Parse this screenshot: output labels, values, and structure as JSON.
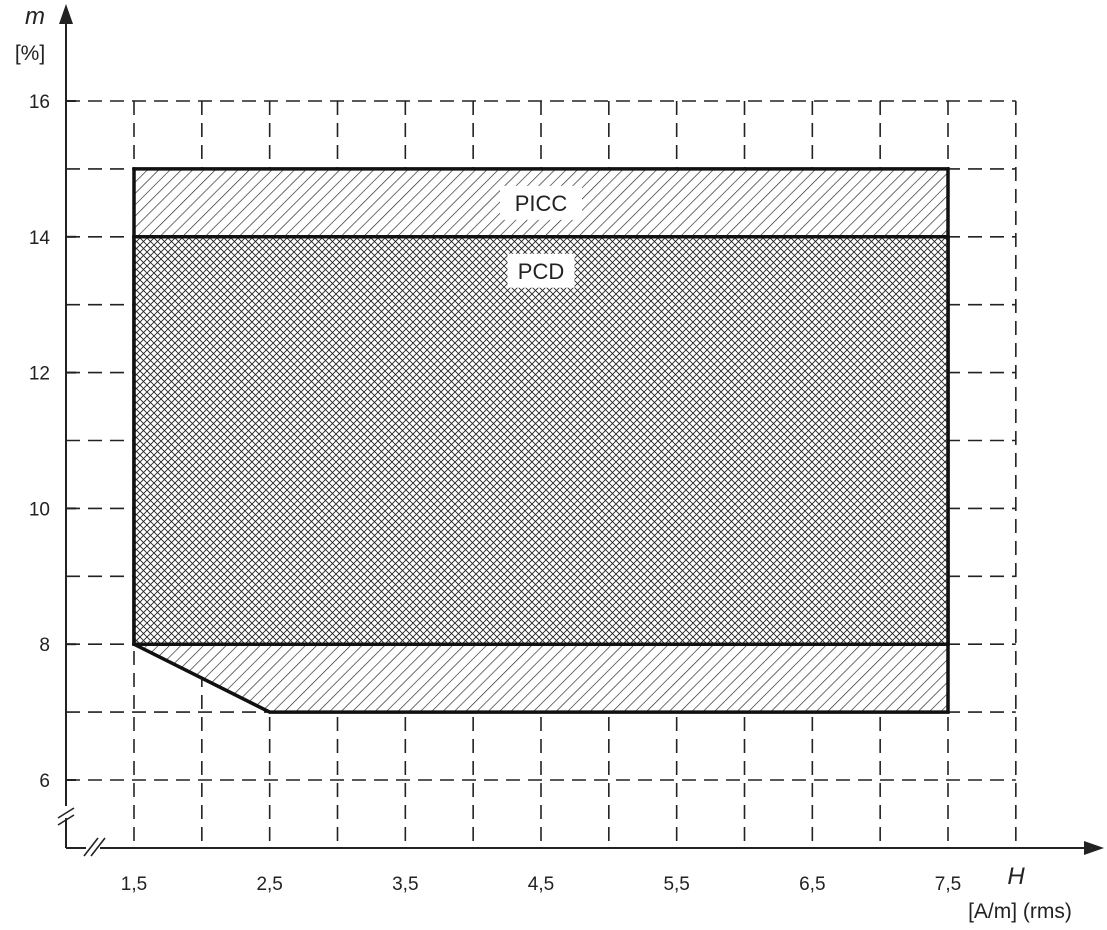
{
  "chart_data": {
    "type": "area",
    "xlabel_var": "H",
    "xlabel_unit": "[A/m] (rms)",
    "ylabel_var": "m",
    "ylabel_unit": "[%]",
    "xlim": [
      1.0,
      8.0
    ],
    "ylim": [
      5.0,
      16.0
    ],
    "grid": true,
    "x_ticks": [
      {
        "value": 1.5,
        "label": "1,5"
      },
      {
        "value": 2.5,
        "label": "2,5"
      },
      {
        "value": 3.5,
        "label": "3,5"
      },
      {
        "value": 4.5,
        "label": "4,5"
      },
      {
        "value": 5.5,
        "label": "5,5"
      },
      {
        "value": 6.5,
        "label": "6,5"
      },
      {
        "value": 7.5,
        "label": "7,5"
      }
    ],
    "y_ticks": [
      {
        "value": 6,
        "label": "6"
      },
      {
        "value": 8,
        "label": "8"
      },
      {
        "value": 10,
        "label": "10"
      },
      {
        "value": 12,
        "label": "12"
      },
      {
        "value": 14,
        "label": "14"
      },
      {
        "value": 16,
        "label": "16"
      }
    ],
    "x_grid": [
      1.5,
      2.0,
      2.5,
      3.0,
      3.5,
      4.0,
      4.5,
      5.0,
      5.5,
      6.0,
      6.5,
      7.0,
      7.5,
      8.0
    ],
    "y_grid": [
      6,
      7,
      8,
      9,
      10,
      11,
      12,
      13,
      14,
      15,
      16
    ],
    "regions": [
      {
        "name": "PICC",
        "fill": "diagonal-hatch",
        "polygon": [
          [
            1.5,
            15
          ],
          [
            7.5,
            15
          ],
          [
            7.5,
            7
          ],
          [
            2.5,
            7
          ],
          [
            1.5,
            8
          ]
        ],
        "label_at": [
          4.5,
          14.5
        ]
      },
      {
        "name": "PCD",
        "fill": "cross-hatch",
        "polygon": [
          [
            1.5,
            14
          ],
          [
            7.5,
            14
          ],
          [
            7.5,
            8
          ],
          [
            1.5,
            8
          ]
        ],
        "label_at": [
          4.5,
          13.5
        ]
      }
    ]
  },
  "colors": {
    "ink": "#222222",
    "background": "#ffffff"
  }
}
